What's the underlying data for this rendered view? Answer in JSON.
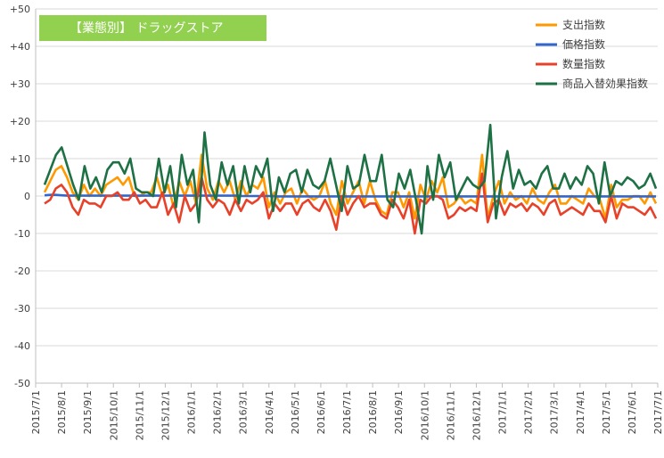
{
  "chart_data": {
    "type": "line",
    "title": "【業態別】 ドラッグストア",
    "title_bg": "#92d050",
    "title_color": "#ffffff",
    "ylim": [
      -50,
      50
    ],
    "y_ticks": [
      "+50",
      "+40",
      "+30",
      "+20",
      "+10",
      "0",
      "-10",
      "-20",
      "-30",
      "-40",
      "-50"
    ],
    "y_tick_values": [
      50,
      40,
      30,
      20,
      10,
      0,
      -10,
      -20,
      -30,
      -40,
      -50
    ],
    "grid": "horizontal",
    "legend": "top-right",
    "x_start": "2015/7/1",
    "x_end": "2017/7/1",
    "x_ticks": [
      "2015/7/1",
      "2015/8/1",
      "2015/9/1",
      "2015/10/1",
      "2015/11/1",
      "2015/12/1",
      "2016/1/1",
      "2016/2/1",
      "2016/3/1",
      "2016/4/1",
      "2016/5/1",
      "2016/6/1",
      "2016/7/1",
      "2016/8/1",
      "2016/9/1",
      "2016/10/1",
      "2016/11/1",
      "2016/12/1",
      "2017/1/1",
      "2017/2/1",
      "2017/3/1",
      "2017/4/1",
      "2017/5/1",
      "2017/6/1",
      "2017/7/1"
    ],
    "series": [
      {
        "name": "支出指数",
        "color": "#ff9900",
        "values": [
          1,
          4,
          7,
          8,
          5,
          1,
          -1,
          3,
          0,
          2,
          0,
          3,
          4,
          5,
          3,
          5,
          0,
          0,
          1,
          1,
          5,
          0,
          3,
          -3,
          4,
          0,
          4,
          -2,
          11,
          2,
          -1,
          4,
          1,
          4,
          -1,
          4,
          0,
          3,
          2,
          5,
          -3,
          1,
          -2,
          1,
          2,
          -2,
          2,
          0,
          -1,
          0,
          4,
          -2,
          -5,
          4,
          -2,
          1,
          4,
          -2,
          4,
          -1,
          -4,
          -5,
          1,
          1,
          -3,
          1,
          -6,
          3,
          -1,
          4,
          1,
          5,
          -3,
          -2,
          0,
          -2,
          -1,
          -2,
          11,
          -6,
          0,
          4,
          -2,
          1,
          -1,
          0,
          -2,
          2,
          -1,
          -2,
          1,
          3,
          -2,
          -2,
          0,
          -1,
          -2,
          2,
          0,
          -1,
          -6,
          3,
          -3,
          -1,
          -1,
          0,
          0,
          -2,
          1,
          -2
        ]
      },
      {
        "name": "価格指数",
        "color": "#3366cc",
        "values": [
          0.2,
          0.3,
          0.3,
          0.2,
          0.1,
          0.1,
          0.1,
          0.1,
          0.1,
          0.1,
          0.1,
          0.1,
          0.1,
          0.1,
          0.1,
          0.1,
          0.1,
          0.1,
          0.1,
          0.1,
          0.1,
          0.1,
          0.1,
          0.1,
          0.1,
          0.1,
          0.1,
          0.1,
          0.1,
          0.1,
          0.1,
          0.1,
          0.1,
          0.1,
          0.1,
          0.0,
          0.0,
          0.0,
          0.0,
          0.0,
          0.0,
          -0.1,
          -0.1,
          -0.1,
          -0.1,
          -0.1,
          -0.1,
          -0.1,
          -0.1,
          -0.1,
          -0.1,
          -0.1,
          -0.1,
          -0.1,
          -0.1,
          -0.1,
          -0.1,
          -0.1,
          -0.1,
          -0.1,
          -0.1,
          -0.1,
          -0.1,
          -0.1,
          -0.1,
          -0.1,
          -0.1,
          -0.1,
          -0.1,
          -0.1,
          -0.1,
          -0.1,
          -0.1,
          -0.1,
          -0.1,
          -0.1,
          -0.1,
          -0.1,
          -0.1,
          -0.1,
          -0.1,
          -0.1,
          -0.1,
          -0.1,
          -0.1,
          -0.1,
          -0.1,
          -0.1,
          -0.1,
          -0.1,
          -0.1,
          -0.1,
          -0.1,
          -0.1,
          -0.1,
          -0.1,
          -0.1,
          -0.1,
          -0.1,
          -0.1,
          -0.1,
          -0.1,
          -0.1,
          -0.1,
          -0.1,
          -0.1,
          -0.1,
          -0.1,
          -0.1
        ]
      },
      {
        "name": "数量指数",
        "color": "#e8412a",
        "values": [
          -2,
          -1,
          2,
          3,
          1,
          -3,
          -5,
          -1,
          -2,
          -2,
          -3,
          0,
          0,
          1,
          -1,
          -1,
          1,
          -2,
          -1,
          -3,
          -3,
          1,
          -5,
          -2,
          -7,
          0,
          -4,
          -2,
          5,
          -1,
          -3,
          -1,
          -2,
          -5,
          -1,
          -4,
          -1,
          -2,
          -1,
          1,
          -6,
          -2,
          -4,
          -2,
          -2,
          -5,
          -2,
          -1,
          -3,
          -4,
          -1,
          -4,
          -9,
          0,
          -5,
          -2,
          0,
          -3,
          -2,
          -2,
          -5,
          -6,
          -1,
          -3,
          -6,
          -1,
          -10,
          -1,
          -2,
          0,
          0,
          -1,
          -6,
          -5,
          -3,
          -4,
          -3,
          -4,
          6,
          -7,
          -2,
          -1,
          -5,
          -2,
          -3,
          -2,
          -4,
          -2,
          -3,
          -5,
          -2,
          -1,
          -5,
          -4,
          -3,
          -4,
          -5,
          -2,
          -4,
          -4,
          -7,
          0,
          -6,
          -2,
          -3,
          -3,
          -4,
          -5,
          -3,
          -6
        ]
      },
      {
        "name": "商品入替効果指数",
        "color": "#1e7145",
        "values": [
          3,
          7,
          11,
          13,
          8,
          3,
          -1,
          8,
          2,
          5,
          1,
          7,
          9,
          9,
          6,
          10,
          2,
          1,
          1,
          0,
          10,
          1,
          8,
          -3,
          11,
          3,
          7,
          -7,
          17,
          3,
          -1,
          9,
          3,
          8,
          -2,
          8,
          1,
          8,
          5,
          10,
          -4,
          5,
          1,
          6,
          7,
          1,
          7,
          3,
          2,
          4,
          10,
          3,
          -4,
          8,
          2,
          3,
          11,
          4,
          4,
          11,
          -1,
          -3,
          6,
          2,
          7,
          -1,
          -10,
          8,
          -1,
          11,
          5,
          9,
          -1,
          2,
          5,
          3,
          2,
          4,
          19,
          -6,
          5,
          12,
          2,
          7,
          3,
          4,
          2,
          6,
          8,
          2,
          2,
          6,
          2,
          5,
          3,
          8,
          6,
          -2,
          9,
          0,
          4,
          3,
          5,
          4,
          2,
          3,
          6,
          2
        ]
      }
    ]
  }
}
